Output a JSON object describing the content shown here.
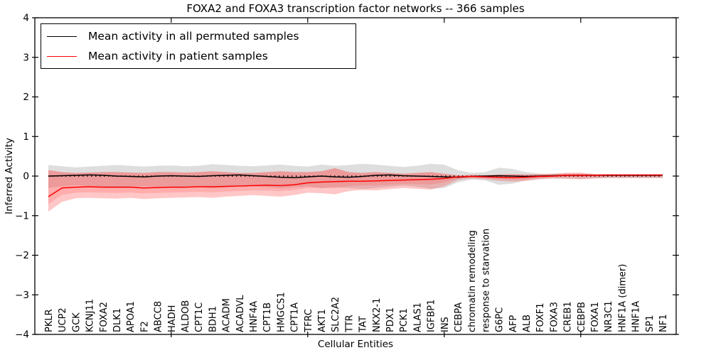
{
  "title": "FOXA2 and FOXA3 transcription factor networks -- 366 samples",
  "legend": {
    "items": [
      {
        "label": "Mean activity in all permuted samples",
        "color": "#000000"
      },
      {
        "label": "Mean activity in patient samples",
        "color": "#ff0000"
      }
    ]
  },
  "axes": {
    "xlabel": "Cellular Entities",
    "ylabel": "Inferred Activity",
    "ytick_labels": [
      "4",
      "3",
      "2",
      "1",
      "0",
      "−1",
      "−2",
      "−3",
      "−4"
    ],
    "ytick_values": [
      4,
      3,
      2,
      1,
      0,
      -1,
      -2,
      -3,
      -4
    ],
    "xtick_major_indices": [
      9,
      19,
      29,
      39
    ]
  },
  "chart_data": {
    "type": "line",
    "title": "FOXA2 and FOXA3 transcription factor networks -- 366 samples",
    "xlabel": "Cellular Entities",
    "ylabel": "Inferred Activity",
    "ylim": [
      -4,
      4
    ],
    "grid": false,
    "legend_position": "upper left",
    "categories": [
      "PKLR",
      "UCP2",
      "GCK",
      "KCNJ11",
      "FOXA2",
      "DLK1",
      "APOA1",
      "F2",
      "ABCC8",
      "HADH",
      "ALDOB",
      "CPT1C",
      "BDH1",
      "ACADM",
      "ACADVL",
      "HNF4A",
      "CPT1B",
      "HMGCS1",
      "CPT1A",
      "TFRC",
      "AKT1",
      "SLC2A2",
      "TTR",
      "TAT",
      "NKX2-1",
      "PDX1",
      "PCK1",
      "ALAS1",
      "IGFBP1",
      "INS",
      "CEBPA",
      "chromatin remodeling",
      "response to starvation",
      "G6PC",
      "AFP",
      "ALB",
      "FOXF1",
      "FOXA3",
      "CREB1",
      "CEBPB",
      "FOXA1",
      "NR3C1",
      "HNF1A (dimer)",
      "HNF1A",
      "SP1",
      "NF1"
    ],
    "series": [
      {
        "name": "Mean activity in all permuted samples",
        "color": "#000000",
        "values": [
          0.0,
          0.01,
          0.02,
          0.03,
          0.02,
          0.0,
          -0.01,
          -0.02,
          0.0,
          0.01,
          0.0,
          -0.01,
          0.01,
          0.02,
          0.03,
          0.01,
          -0.01,
          -0.03,
          -0.04,
          -0.02,
          0.0,
          -0.02,
          -0.03,
          -0.01,
          0.02,
          0.03,
          0.01,
          0.0,
          -0.01,
          -0.02,
          -0.03,
          -0.01,
          0.0,
          0.01,
          0.0,
          -0.01,
          0.0,
          0.01,
          0.02,
          0.02,
          0.02,
          0.02,
          0.02,
          0.02,
          0.02,
          0.02
        ]
      },
      {
        "name": "Mean activity in patient samples",
        "color": "#ff0000",
        "values": [
          -0.52,
          -0.3,
          -0.28,
          -0.27,
          -0.28,
          -0.28,
          -0.28,
          -0.3,
          -0.29,
          -0.28,
          -0.28,
          -0.27,
          -0.27,
          -0.26,
          -0.25,
          -0.24,
          -0.23,
          -0.24,
          -0.22,
          -0.17,
          -0.15,
          -0.14,
          -0.13,
          -0.13,
          -0.12,
          -0.11,
          -0.1,
          -0.09,
          -0.08,
          -0.06,
          -0.02,
          -0.01,
          -0.02,
          -0.03,
          -0.04,
          -0.03,
          -0.01,
          0.0,
          0.02,
          0.02,
          0.02,
          0.03,
          0.03,
          0.03,
          0.03,
          0.03
        ]
      }
    ],
    "bands": [
      {
        "name": "permuted-range",
        "color": "#999999",
        "opacity": 0.32,
        "upper": [
          0.28,
          0.25,
          0.22,
          0.24,
          0.26,
          0.28,
          0.26,
          0.24,
          0.26,
          0.27,
          0.25,
          0.26,
          0.3,
          0.28,
          0.26,
          0.25,
          0.27,
          0.29,
          0.26,
          0.24,
          0.29,
          0.26,
          0.28,
          0.31,
          0.29,
          0.26,
          0.23,
          0.26,
          0.31,
          0.29,
          0.15,
          0.08,
          0.1,
          0.21,
          0.18,
          0.1,
          0.06,
          0.05,
          0.05,
          0.06,
          0.05,
          0.05,
          0.04,
          0.04,
          0.04,
          0.04
        ],
        "lower": [
          -0.3,
          -0.26,
          -0.23,
          -0.25,
          -0.27,
          -0.29,
          -0.27,
          -0.25,
          -0.27,
          -0.28,
          -0.26,
          -0.27,
          -0.31,
          -0.29,
          -0.27,
          -0.26,
          -0.28,
          -0.31,
          -0.28,
          -0.26,
          -0.31,
          -0.28,
          -0.3,
          -0.33,
          -0.3,
          -0.27,
          -0.24,
          -0.27,
          -0.32,
          -0.3,
          -0.16,
          -0.09,
          -0.11,
          -0.22,
          -0.19,
          -0.11,
          -0.07,
          -0.06,
          -0.06,
          -0.07,
          -0.06,
          -0.05,
          -0.05,
          -0.05,
          -0.05,
          -0.05
        ]
      },
      {
        "name": "patient-range",
        "color": "#ff4444",
        "opacity": 0.3,
        "upper": [
          0.15,
          0.1,
          0.08,
          0.09,
          0.1,
          0.1,
          0.09,
          0.08,
          0.1,
          0.1,
          0.09,
          0.1,
          0.12,
          0.1,
          0.08,
          0.08,
          0.1,
          0.12,
          0.1,
          0.1,
          0.12,
          0.2,
          0.1,
          0.08,
          0.1,
          0.08,
          0.06,
          0.08,
          0.1,
          0.06,
          0.02,
          0.03,
          0.02,
          0.04,
          0.05,
          0.04,
          0.05,
          0.06,
          0.08,
          0.08,
          0.05,
          0.04,
          0.04,
          0.04,
          0.04,
          0.04
        ],
        "lower": [
          -0.9,
          -0.65,
          -0.56,
          -0.55,
          -0.56,
          -0.57,
          -0.55,
          -0.58,
          -0.56,
          -0.55,
          -0.54,
          -0.53,
          -0.55,
          -0.52,
          -0.5,
          -0.48,
          -0.5,
          -0.52,
          -0.48,
          -0.42,
          -0.43,
          -0.46,
          -0.38,
          -0.35,
          -0.36,
          -0.33,
          -0.3,
          -0.32,
          -0.34,
          -0.26,
          -0.1,
          -0.06,
          -0.08,
          -0.12,
          -0.14,
          -0.12,
          -0.08,
          -0.06,
          -0.07,
          -0.08,
          -0.06,
          -0.05,
          -0.05,
          -0.05,
          -0.05,
          -0.05
        ]
      }
    ],
    "reference_line": {
      "value": 0,
      "style": "dotted",
      "color": "#000000"
    }
  }
}
